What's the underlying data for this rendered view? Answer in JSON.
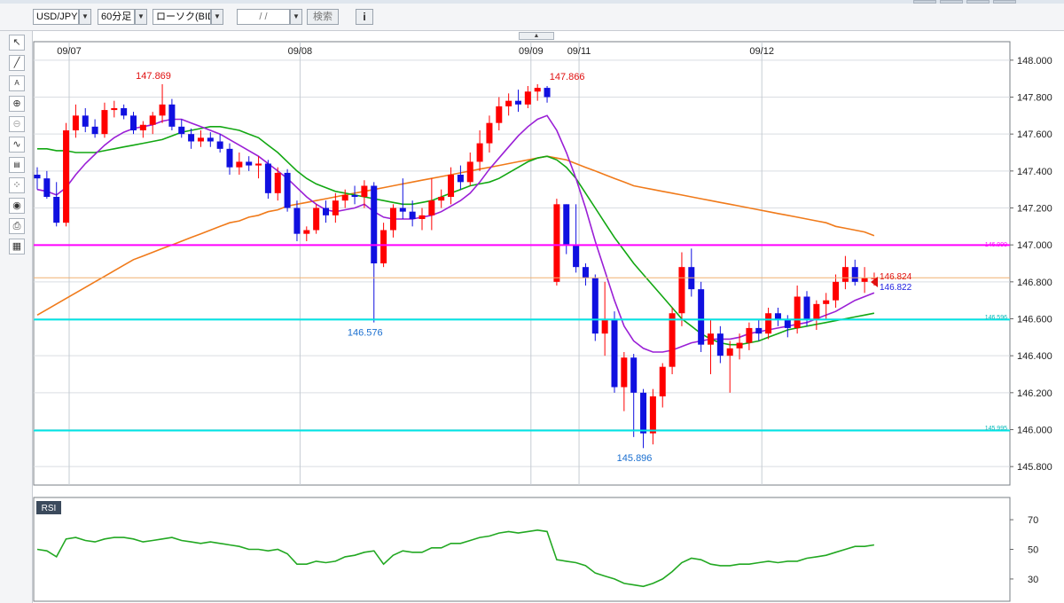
{
  "toolbar": {
    "symbol": "USD/JPY",
    "timeframe": "60分足",
    "chart_type": "ローソク(BID)",
    "date_placeholder": "/ /",
    "search_label": "検索",
    "info_label": "i"
  },
  "price_labels": {
    "current_ask": "146.824",
    "current_bid": "146.822",
    "line_top": "146.999",
    "line_mid": "146.596",
    "line_bottom": "145.995"
  },
  "rsi_panel": {
    "label": "RSI"
  },
  "colors": {
    "up": "#ff0000",
    "down": "#1010e0",
    "ma_short": "#9a1fd6",
    "ma_mid": "#12a712",
    "ma_long": "#f07a1a",
    "line_top": "#ff00ff",
    "line_level": "#00e5e5",
    "rsi": "#22a822"
  },
  "chart_data": {
    "type": "candlestick",
    "symbol": "USD/JPY",
    "timeframe": "60分足",
    "ylim": [
      145.7,
      148.1
    ],
    "y_ticks": [
      "148.000",
      "147.800",
      "147.600",
      "147.400",
      "147.200",
      "147.000",
      "146.800",
      "146.600",
      "146.400",
      "146.200",
      "146.000",
      "145.800"
    ],
    "date_labels": [
      {
        "label": "09/07",
        "index": 0
      },
      {
        "label": "09/08",
        "index": 24
      },
      {
        "label": "09/09",
        "index": 48
      },
      {
        "label": "09/11",
        "index": 53
      },
      {
        "label": "09/12",
        "index": 72
      }
    ],
    "annotations": [
      {
        "label": "147.869",
        "index": 13,
        "price": 147.869,
        "kind": "high"
      },
      {
        "label": "146.576",
        "index": 35,
        "price": 146.576,
        "kind": "low"
      },
      {
        "label": "147.866",
        "index": 56,
        "price": 147.866,
        "kind": "high"
      },
      {
        "label": "145.896",
        "index": 63,
        "price": 145.896,
        "kind": "low"
      }
    ],
    "horizontal_lines": [
      {
        "label": "146.999",
        "price": 146.999,
        "style": "magenta"
      },
      {
        "label": "146.596",
        "price": 146.596,
        "style": "cyan"
      },
      {
        "label": "145.995",
        "price": 145.995,
        "style": "cyan"
      }
    ],
    "current_price_line": 146.822,
    "candles": [
      [
        147.38,
        147.42,
        147.3,
        147.36
      ],
      [
        147.36,
        147.4,
        147.25,
        147.26
      ],
      [
        147.26,
        147.34,
        147.1,
        147.12
      ],
      [
        147.12,
        147.66,
        147.1,
        147.62
      ],
      [
        147.62,
        147.76,
        147.58,
        147.7
      ],
      [
        147.7,
        147.74,
        147.61,
        147.64
      ],
      [
        147.64,
        147.68,
        147.58,
        147.6
      ],
      [
        147.6,
        147.77,
        147.58,
        147.73
      ],
      [
        147.73,
        147.78,
        147.69,
        147.74
      ],
      [
        147.74,
        147.76,
        147.68,
        147.7
      ],
      [
        147.7,
        147.72,
        147.6,
        147.62
      ],
      [
        147.62,
        147.67,
        147.58,
        147.65
      ],
      [
        147.65,
        147.72,
        147.6,
        147.7
      ],
      [
        147.7,
        147.87,
        147.66,
        147.76
      ],
      [
        147.76,
        147.79,
        147.62,
        147.64
      ],
      [
        147.64,
        147.68,
        147.58,
        147.6
      ],
      [
        147.6,
        147.63,
        147.52,
        147.56
      ],
      [
        147.56,
        147.62,
        147.53,
        147.58
      ],
      [
        147.58,
        147.61,
        147.53,
        147.56
      ],
      [
        147.56,
        147.6,
        147.5,
        147.52
      ],
      [
        147.52,
        147.55,
        147.38,
        147.42
      ],
      [
        147.42,
        147.5,
        147.38,
        147.45
      ],
      [
        147.45,
        147.48,
        147.4,
        147.43
      ],
      [
        147.43,
        147.48,
        147.36,
        147.44
      ],
      [
        147.44,
        147.46,
        147.25,
        147.28
      ],
      [
        147.28,
        147.42,
        147.24,
        147.39
      ],
      [
        147.39,
        147.41,
        147.18,
        147.2
      ],
      [
        147.2,
        147.24,
        147.02,
        147.06
      ],
      [
        147.06,
        147.1,
        147.02,
        147.08
      ],
      [
        147.08,
        147.22,
        147.06,
        147.2
      ],
      [
        147.2,
        147.24,
        147.12,
        147.16
      ],
      [
        147.16,
        147.28,
        147.12,
        147.24
      ],
      [
        147.24,
        147.3,
        147.2,
        147.27
      ],
      [
        147.27,
        147.32,
        147.22,
        147.26
      ],
      [
        147.26,
        147.35,
        147.2,
        147.32
      ],
      [
        147.32,
        147.34,
        146.58,
        146.9
      ],
      [
        146.9,
        147.12,
        146.88,
        147.08
      ],
      [
        147.08,
        147.22,
        147.04,
        147.2
      ],
      [
        147.2,
        147.36,
        147.14,
        147.18
      ],
      [
        147.18,
        147.24,
        147.1,
        147.14
      ],
      [
        147.14,
        147.2,
        147.08,
        147.16
      ],
      [
        147.16,
        147.36,
        147.08,
        147.24
      ],
      [
        147.24,
        147.3,
        147.2,
        147.26
      ],
      [
        147.26,
        147.42,
        147.22,
        147.38
      ],
      [
        147.38,
        147.43,
        147.3,
        147.34
      ],
      [
        147.34,
        147.5,
        147.32,
        147.45
      ],
      [
        147.45,
        147.62,
        147.4,
        147.55
      ],
      [
        147.55,
        147.7,
        147.5,
        147.66
      ],
      [
        147.66,
        147.8,
        147.62,
        147.75
      ],
      [
        147.75,
        147.82,
        147.7,
        147.78
      ],
      [
        147.78,
        147.84,
        147.72,
        147.76
      ],
      [
        147.76,
        147.86,
        147.74,
        147.83
      ],
      [
        147.83,
        147.87,
        147.78,
        147.85
      ],
      [
        147.85,
        147.86,
        147.77,
        147.8
      ],
      [
        146.8,
        147.25,
        146.78,
        147.22
      ],
      [
        147.22,
        147.22,
        146.95,
        147.0
      ],
      [
        147.0,
        147.22,
        146.85,
        146.88
      ],
      [
        146.88,
        146.9,
        146.78,
        146.82
      ],
      [
        146.82,
        146.84,
        146.48,
        146.52
      ],
      [
        146.52,
        146.8,
        146.4,
        146.6
      ],
      [
        146.6,
        146.64,
        146.2,
        146.23
      ],
      [
        146.23,
        146.42,
        146.1,
        146.39
      ],
      [
        146.39,
        146.41,
        145.96,
        146.2
      ],
      [
        146.2,
        146.22,
        145.9,
        145.98
      ],
      [
        145.98,
        146.22,
        145.92,
        146.18
      ],
      [
        146.18,
        146.36,
        146.12,
        146.34
      ],
      [
        146.34,
        146.66,
        146.3,
        146.63
      ],
      [
        146.63,
        146.96,
        146.56,
        146.88
      ],
      [
        146.88,
        146.98,
        146.72,
        146.76
      ],
      [
        146.76,
        146.8,
        146.42,
        146.46
      ],
      [
        146.46,
        146.6,
        146.3,
        146.52
      ],
      [
        146.52,
        146.56,
        146.36,
        146.4
      ],
      [
        146.4,
        146.48,
        146.2,
        146.44
      ],
      [
        146.44,
        146.52,
        146.38,
        146.47
      ],
      [
        146.47,
        146.58,
        146.43,
        146.55
      ],
      [
        146.55,
        146.6,
        146.48,
        146.52
      ],
      [
        146.52,
        146.66,
        146.49,
        146.63
      ],
      [
        146.63,
        146.66,
        146.56,
        146.6
      ],
      [
        146.6,
        146.62,
        146.5,
        146.55
      ],
      [
        146.55,
        146.78,
        146.52,
        146.72
      ],
      [
        146.72,
        146.75,
        146.56,
        146.6
      ],
      [
        146.6,
        146.7,
        146.54,
        146.68
      ],
      [
        146.68,
        146.74,
        146.6,
        146.7
      ],
      [
        146.7,
        146.84,
        146.66,
        146.8
      ],
      [
        146.8,
        146.94,
        146.76,
        146.88
      ],
      [
        146.88,
        146.92,
        146.78,
        146.8
      ],
      [
        146.8,
        146.88,
        146.74,
        146.82
      ],
      [
        146.82,
        146.85,
        146.78,
        146.82
      ]
    ],
    "ma_short": [
      147.3,
      147.29,
      147.27,
      147.31,
      147.38,
      147.44,
      147.49,
      147.54,
      147.58,
      147.61,
      147.63,
      147.64,
      147.65,
      147.67,
      147.68,
      147.68,
      147.66,
      147.64,
      147.62,
      147.6,
      147.57,
      147.54,
      147.51,
      147.48,
      147.44,
      147.4,
      147.36,
      147.31,
      147.26,
      147.22,
      147.19,
      147.18,
      147.19,
      147.2,
      147.22,
      147.18,
      147.15,
      147.14,
      147.14,
      147.14,
      147.15,
      147.16,
      147.18,
      147.21,
      147.24,
      147.28,
      147.34,
      147.41,
      147.47,
      147.53,
      147.59,
      147.64,
      147.68,
      147.7,
      147.62,
      147.5,
      147.36,
      147.2,
      147.02,
      146.86,
      146.7,
      146.56,
      146.48,
      146.44,
      146.42,
      146.42,
      146.43,
      146.45,
      146.47,
      146.48,
      146.49,
      146.49,
      146.49,
      146.5,
      146.52,
      146.53,
      146.54,
      146.55,
      146.56,
      146.57,
      146.58,
      146.6,
      146.62,
      146.64,
      146.67,
      146.7,
      146.72,
      146.74
    ],
    "ma_mid": [
      147.52,
      147.52,
      147.51,
      147.51,
      147.5,
      147.5,
      147.5,
      147.51,
      147.52,
      147.53,
      147.54,
      147.55,
      147.56,
      147.57,
      147.59,
      147.61,
      147.62,
      147.63,
      147.64,
      147.64,
      147.63,
      147.62,
      147.6,
      147.58,
      147.54,
      147.5,
      147.45,
      147.4,
      147.36,
      147.33,
      147.31,
      147.29,
      147.28,
      147.27,
      147.26,
      147.25,
      147.24,
      147.23,
      147.22,
      147.22,
      147.23,
      147.24,
      147.26,
      147.28,
      147.3,
      147.32,
      147.33,
      147.34,
      147.36,
      147.39,
      147.42,
      147.45,
      147.47,
      147.48,
      147.46,
      147.42,
      147.36,
      147.28,
      147.2,
      147.12,
      147.04,
      146.97,
      146.9,
      146.84,
      146.78,
      146.72,
      146.66,
      146.6,
      146.56,
      146.52,
      146.49,
      146.47,
      146.46,
      146.46,
      146.47,
      146.48,
      146.5,
      146.52,
      146.54,
      146.55,
      146.56,
      146.57,
      146.58,
      146.59,
      146.6,
      146.61,
      146.62,
      146.63
    ],
    "ma_long": [
      146.62,
      146.65,
      146.68,
      146.71,
      146.74,
      146.77,
      146.8,
      146.83,
      146.86,
      146.89,
      146.92,
      146.94,
      146.96,
      146.98,
      147.0,
      147.02,
      147.04,
      147.06,
      147.08,
      147.1,
      147.12,
      147.13,
      147.15,
      147.16,
      147.18,
      147.19,
      147.21,
      147.22,
      147.23,
      147.24,
      147.25,
      147.26,
      147.27,
      147.28,
      147.29,
      147.3,
      147.31,
      147.32,
      147.33,
      147.34,
      147.35,
      147.36,
      147.37,
      147.38,
      147.39,
      147.4,
      147.41,
      147.42,
      147.43,
      147.44,
      147.45,
      147.46,
      147.47,
      147.48,
      147.47,
      147.46,
      147.44,
      147.42,
      147.4,
      147.38,
      147.36,
      147.34,
      147.32,
      147.31,
      147.3,
      147.29,
      147.28,
      147.27,
      147.26,
      147.25,
      147.24,
      147.23,
      147.22,
      147.21,
      147.2,
      147.19,
      147.18,
      147.17,
      147.16,
      147.15,
      147.14,
      147.13,
      147.12,
      147.1,
      147.09,
      147.08,
      147.07,
      147.05
    ],
    "rsi": {
      "label": "RSI",
      "ylim": [
        15,
        85
      ],
      "y_ticks": [
        "70",
        "50",
        "30"
      ],
      "values": [
        50,
        49,
        45,
        57,
        58,
        56,
        55,
        57,
        58,
        58,
        57,
        55,
        56,
        57,
        58,
        56,
        55,
        54,
        55,
        54,
        53,
        52,
        50,
        50,
        49,
        50,
        47,
        40,
        40,
        42,
        41,
        42,
        45,
        46,
        48,
        49,
        40,
        46,
        49,
        48,
        48,
        51,
        51,
        54,
        54,
        56,
        58,
        59,
        61,
        62,
        61,
        62,
        63,
        62,
        43,
        42,
        41,
        39,
        34,
        32,
        30,
        27,
        26,
        25,
        27,
        30,
        35,
        41,
        44,
        43,
        40,
        39,
        39,
        40,
        40,
        41,
        42,
        41,
        42,
        42,
        44,
        45,
        46,
        48,
        50,
        52,
        52,
        53
      ]
    }
  }
}
